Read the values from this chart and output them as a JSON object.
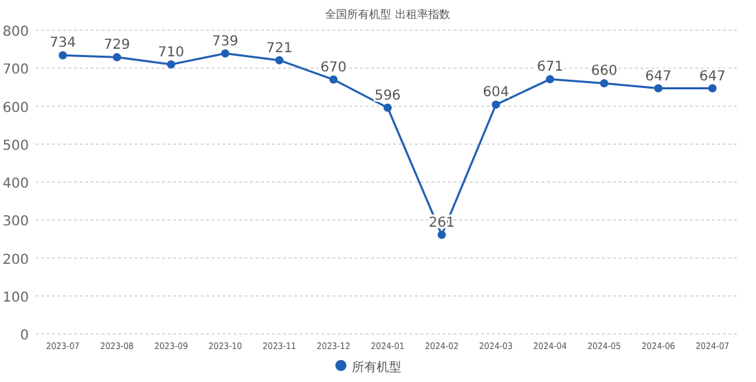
{
  "chart_data": {
    "type": "line",
    "title": "全国所有机型  出租率指数",
    "categories": [
      "2023-07",
      "2023-08",
      "2023-09",
      "2023-10",
      "2023-11",
      "2023-12",
      "2024-01",
      "2024-02",
      "2024-03",
      "2024-04",
      "2024-05",
      "2024-06",
      "2024-07"
    ],
    "series": [
      {
        "name": "所有机型",
        "color": "#1f5fb4",
        "values": [
          734,
          729,
          710,
          739,
          721,
          670,
          596,
          261,
          604,
          671,
          660,
          647,
          647
        ]
      }
    ],
    "ylim": [
      0,
      800
    ],
    "yticks": [
      0,
      100,
      200,
      300,
      400,
      500,
      600,
      700,
      800
    ],
    "grid": "y",
    "legend": "bottom",
    "marker": "circle",
    "line_style": "solid",
    "data_labels": true
  }
}
